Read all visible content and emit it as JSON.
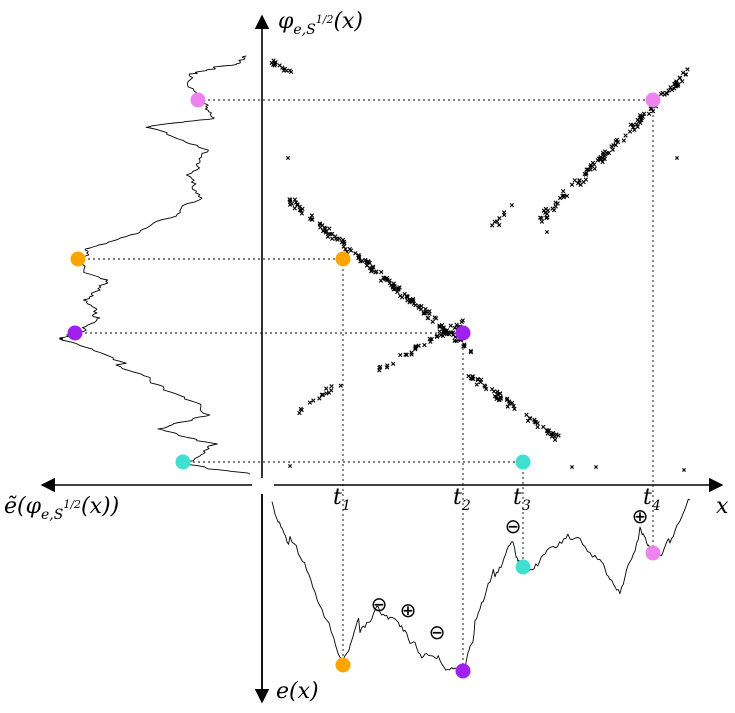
{
  "labels": {
    "y_axis": "φ",
    "y_axis_sub": "e,S",
    "y_axis_sup": "1/2",
    "y_axis_arg": "(x)",
    "x_axis": "x",
    "left_axis_pre": "ẽ(φ",
    "left_axis_sub": "e,S",
    "left_axis_sup": "1/2",
    "left_axis_post": "(x))",
    "down_axis": "e(x)",
    "t1": "t",
    "t1_sub": "1",
    "t2": "t",
    "t2_sub": "2",
    "t3": "t",
    "t3_sub": "3",
    "t4": "t",
    "t4_sub": "4"
  },
  "signs": {
    "minus": "⊖",
    "plus": "⊕"
  },
  "colors": {
    "orange": "#FFA500",
    "purple": "#A020F0",
    "turquoise": "#40E0D0",
    "violet": "#EE82EE"
  }
}
